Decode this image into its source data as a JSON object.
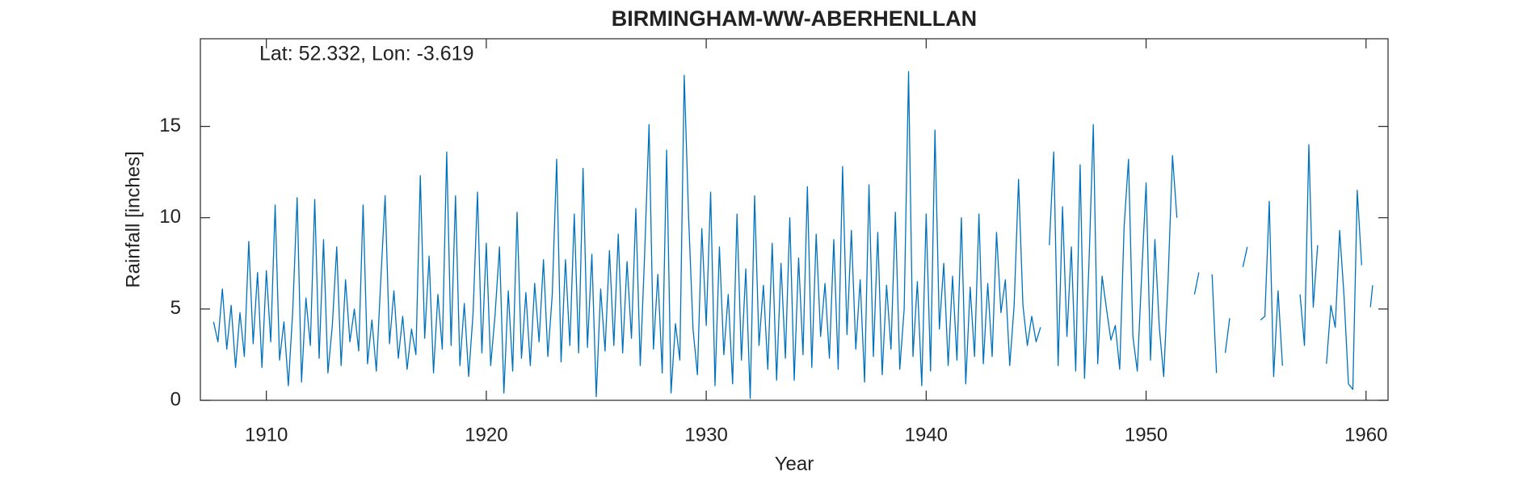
{
  "chart_data": {
    "type": "line",
    "title": "BIRMINGHAM-WW-ABERHENLLAN",
    "annotation": "Lat: 52.332, Lon: -3.619",
    "x_label": "Year",
    "y_label": "Rainfall [inches]",
    "color": "#0072bd",
    "xlim": [
      1907,
      1961
    ],
    "ylim": [
      0,
      19.8
    ],
    "xticks": [
      1910,
      1920,
      1930,
      1940,
      1950,
      1960
    ],
    "yticks": [
      0,
      5,
      10,
      15
    ],
    "x": [
      1907.6,
      1907.8,
      1908,
      1908.2,
      1908.4,
      1908.6,
      1908.8,
      1909,
      1909.2,
      1909.4,
      1909.6,
      1909.8,
      1910,
      1910.2,
      1910.4,
      1910.6,
      1910.8,
      1911,
      1911.2,
      1911.4,
      1911.6,
      1911.8,
      1912,
      1912.2,
      1912.4,
      1912.6,
      1912.8,
      1913,
      1913.2,
      1913.4,
      1913.6,
      1913.8,
      1914,
      1914.2,
      1914.4,
      1914.6,
      1914.8,
      1915,
      1915.2,
      1915.4,
      1915.6,
      1915.8,
      1916,
      1916.2,
      1916.4,
      1916.6,
      1916.8,
      1917,
      1917.2,
      1917.4,
      1917.6,
      1917.8,
      1918,
      1918.2,
      1918.4,
      1918.6,
      1918.8,
      1919,
      1919.2,
      1919.4,
      1919.6,
      1919.8,
      1920,
      1920.2,
      1920.4,
      1920.6,
      1920.8,
      1921,
      1921.2,
      1921.4,
      1921.6,
      1921.8,
      1922,
      1922.2,
      1922.4,
      1922.6,
      1922.8,
      1923,
      1923.2,
      1923.4,
      1923.6,
      1923.8,
      1924,
      1924.2,
      1924.4,
      1924.6,
      1924.8,
      1925,
      1925.2,
      1925.4,
      1925.6,
      1925.8,
      1926,
      1926.2,
      1926.4,
      1926.6,
      1926.8,
      1927,
      1927.2,
      1927.4,
      1927.6,
      1927.8,
      1928,
      1928.2,
      1928.4,
      1928.6,
      1928.8,
      1929,
      1929.2,
      1929.4,
      1929.6,
      1929.8,
      1930,
      1930.2,
      1930.4,
      1930.6,
      1930.8,
      1931,
      1931.2,
      1931.4,
      1931.6,
      1931.8,
      1932,
      1932.2,
      1932.4,
      1932.6,
      1932.8,
      1933,
      1933.2,
      1933.4,
      1933.6,
      1933.8,
      1934,
      1934.2,
      1934.4,
      1934.6,
      1934.8,
      1935,
      1935.2,
      1935.4,
      1935.6,
      1935.8,
      1936,
      1936.2,
      1936.4,
      1936.6,
      1936.8,
      1937,
      1937.2,
      1937.4,
      1937.6,
      1937.8,
      1938,
      1938.2,
      1938.4,
      1938.6,
      1938.8,
      1939,
      1939.2,
      1939.4,
      1939.6,
      1939.8,
      1940,
      1940.2,
      1940.4,
      1940.6,
      1940.8,
      1941,
      1941.2,
      1941.4,
      1941.6,
      1941.8,
      1942,
      1942.2,
      1942.4,
      1942.6,
      1942.8,
      1943,
      1943.2,
      1943.4,
      1943.6,
      1943.8,
      1944,
      1944.2,
      1944.4,
      1944.6,
      1944.8,
      1945,
      1945.2,
      1945.4,
      1945.6,
      1945.8,
      1946,
      1946.2,
      1946.4,
      1946.6,
      1946.8,
      1947,
      1947.2,
      1947.4,
      1947.6,
      1947.8,
      1948,
      1948.2,
      1948.4,
      1948.6,
      1948.8,
      1949,
      1949.2,
      1949.4,
      1949.6,
      1949.8,
      1950,
      1950.2,
      1950.4,
      1950.6,
      1950.8,
      1951,
      1951.2,
      1951.4,
      1951.6,
      1951.8,
      1952,
      1952.2,
      1952.4,
      1952.6,
      1952.8,
      1953,
      1953.2,
      1953.4,
      1953.6,
      1953.8,
      1954,
      1954.2,
      1954.4,
      1954.6,
      1954.8,
      1955,
      1955.2,
      1955.4,
      1955.6,
      1955.8,
      1956,
      1956.2,
      1956.4,
      1956.6,
      1956.8,
      1957,
      1957.2,
      1957.4,
      1957.6,
      1957.8,
      1958,
      1958.2,
      1958.4,
      1958.6,
      1958.8,
      1959,
      1959.2,
      1959.4,
      1959.6,
      1959.8,
      1960,
      1960.2,
      1960.3
    ],
    "values": [
      4.3,
      3.2,
      6.1,
      2.8,
      5.2,
      1.8,
      4.8,
      2.4,
      8.7,
      3.1,
      7.0,
      1.8,
      7.1,
      3.2,
      10.7,
      2.2,
      4.3,
      0.8,
      4.9,
      11.1,
      1.0,
      5.6,
      3.0,
      11.0,
      2.3,
      8.8,
      1.5,
      4.1,
      8.4,
      1.9,
      6.6,
      3.2,
      5.0,
      2.7,
      10.7,
      2.0,
      4.4,
      1.6,
      6.5,
      11.2,
      3.1,
      6.0,
      2.3,
      4.6,
      1.7,
      3.9,
      2.5,
      12.3,
      3.4,
      7.9,
      1.5,
      5.8,
      2.8,
      13.6,
      3.0,
      11.2,
      1.9,
      5.3,
      1.3,
      4.8,
      11.4,
      2.6,
      8.6,
      1.9,
      4.7,
      8.4,
      0.4,
      6.0,
      1.6,
      10.3,
      2.3,
      5.9,
      1.9,
      6.4,
      3.2,
      7.7,
      2.4,
      5.8,
      13.2,
      2.1,
      7.7,
      3.0,
      10.2,
      2.6,
      12.7,
      2.9,
      8.0,
      0.2,
      6.1,
      2.7,
      8.2,
      3.0,
      9.1,
      2.6,
      7.6,
      3.4,
      10.5,
      1.9,
      8.0,
      15.1,
      2.8,
      6.9,
      1.5,
      13.7,
      0.4,
      4.2,
      2.2,
      17.8,
      10.0,
      3.9,
      1.4,
      9.4,
      4.1,
      11.4,
      0.8,
      8.4,
      2.5,
      5.8,
      0.9,
      10.2,
      2.2,
      7.2,
      0.1,
      11.2,
      3.0,
      6.3,
      1.7,
      8.6,
      1.1,
      7.5,
      2.3,
      10.0,
      1.1,
      7.8,
      2.5,
      11.7,
      1.8,
      9.1,
      3.5,
      6.4,
      2.3,
      8.8,
      1.7,
      12.8,
      3.6,
      9.3,
      2.8,
      6.6,
      1.0,
      11.8,
      2.4,
      9.2,
      1.4,
      6.3,
      2.8,
      10.3,
      1.7,
      5.0,
      18.0,
      2.4,
      6.5,
      0.8,
      10.2,
      1.6,
      14.8,
      3.9,
      7.5,
      1.9,
      6.8,
      2.2,
      10.0,
      0.9,
      6.2,
      2.4,
      10.2,
      2.0,
      6.4,
      2.4,
      9.2,
      4.8,
      6.6,
      1.9,
      5.2,
      12.1,
      5.2,
      3.0,
      4.6,
      3.2,
      4.0,
      null,
      8.5,
      13.6,
      1.9,
      10.6,
      3.5,
      8.4,
      1.6,
      12.9,
      1.2,
      7.4,
      15.1,
      2.0,
      6.8,
      5.0,
      3.3,
      4.1,
      1.7,
      9.5,
      13.2,
      3.5,
      1.6,
      6.9,
      11.9,
      2.2,
      8.8,
      4.0,
      1.3,
      6.6,
      13.4,
      10.0,
      null,
      null,
      null,
      5.8,
      7.0,
      null,
      null,
      6.9,
      1.5,
      null,
      2.6,
      4.5,
      null,
      null,
      7.3,
      8.4,
      null,
      null,
      4.4,
      4.6,
      10.9,
      1.3,
      6.0,
      1.9,
      null,
      null,
      null,
      5.8,
      3.0,
      14.0,
      5.1,
      8.5,
      null,
      2.0,
      5.2,
      4.0,
      9.3,
      5.7,
      0.9,
      0.6,
      11.5,
      7.4,
      null,
      5.1,
      6.3
    ]
  }
}
